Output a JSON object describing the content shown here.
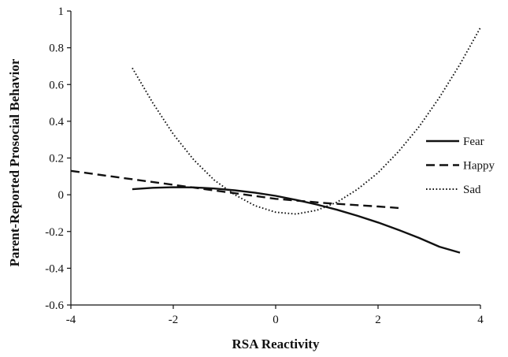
{
  "chart_data": {
    "type": "line",
    "title": "",
    "xlabel": "RSA Reactivity",
    "ylabel": "Parent-Reported Prosocial Behavior",
    "xlim": [
      -4,
      4
    ],
    "ylim": [
      -0.6,
      1
    ],
    "xticks": [
      -4,
      -2,
      0,
      2,
      4
    ],
    "yticks": [
      -0.6,
      -0.4,
      -0.2,
      0,
      0.2,
      0.4,
      0.6,
      0.8,
      1
    ],
    "xtick_labels": [
      "-4",
      "-2",
      "0",
      "2",
      "4"
    ],
    "ytick_labels": [
      "-0.6",
      "-0.4",
      "-0.2",
      "0",
      "0.2",
      "0.4",
      "0.6",
      "0.8",
      "1"
    ],
    "grid": false,
    "legend_position": "right",
    "series": [
      {
        "name": "Fear",
        "style": "solid",
        "x": [
          -2.8,
          -2.4,
          -2.0,
          -1.6,
          -1.2,
          -0.8,
          -0.4,
          0.0,
          0.4,
          0.8,
          1.2,
          1.6,
          2.0,
          2.4,
          2.8,
          3.2,
          3.6
        ],
        "y": [
          0.03,
          0.038,
          0.041,
          0.04,
          0.034,
          0.024,
          0.011,
          -0.006,
          -0.028,
          -0.053,
          -0.082,
          -0.115,
          -0.151,
          -0.191,
          -0.235,
          -0.283,
          -0.315
        ]
      },
      {
        "name": "Happy",
        "style": "dashed",
        "x": [
          -4.0,
          -3.0,
          -2.0,
          -1.0,
          0.0,
          1.0,
          2.0,
          2.4
        ],
        "y": [
          0.13,
          0.092,
          0.054,
          0.016,
          -0.022,
          -0.046,
          -0.064,
          -0.072
        ]
      },
      {
        "name": "Sad",
        "style": "dotted",
        "x": [
          -2.8,
          -2.4,
          -2.0,
          -1.6,
          -1.2,
          -0.8,
          -0.4,
          0.0,
          0.4,
          0.8,
          1.2,
          1.6,
          2.0,
          2.4,
          2.8,
          3.2,
          3.6,
          4.0
        ],
        "y": [
          0.69,
          0.5,
          0.33,
          0.19,
          0.08,
          0.0,
          -0.06,
          -0.095,
          -0.105,
          -0.085,
          -0.04,
          0.03,
          0.12,
          0.235,
          0.37,
          0.53,
          0.71,
          0.91
        ]
      }
    ]
  }
}
